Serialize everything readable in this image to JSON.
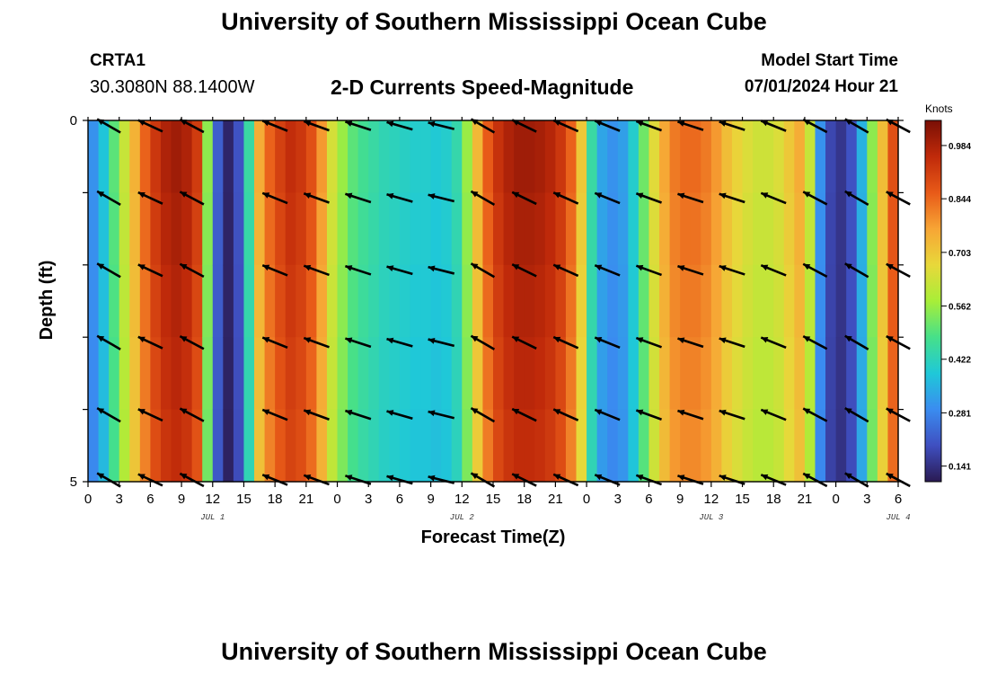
{
  "header": {
    "title": "University of Southern Mississippi Ocean Cube",
    "station": "CRTA1",
    "coords": "30.3080N  88.1400W",
    "subtitle": "2-D Currents Speed-Magnitude",
    "model_start_label": "Model Start Time",
    "model_start_time": "07/01/2024 Hour 21"
  },
  "footer": {
    "title": "University of Southern Mississippi Ocean Cube"
  },
  "chart_data": {
    "type": "heatmap",
    "title": "2-D Currents Speed-Magnitude",
    "xlabel": "Forecast Time(Z)",
    "ylabel": "Depth (ft)",
    "x_tick_labels": [
      "0",
      "3",
      "6",
      "9",
      "12",
      "15",
      "18",
      "21",
      "0",
      "3",
      "6",
      "9",
      "12",
      "15",
      "18",
      "21",
      "0",
      "3",
      "6",
      "9",
      "12",
      "15",
      "18",
      "21",
      "0",
      "3",
      "6"
    ],
    "x_range_hours": [
      0,
      78
    ],
    "date_labels": [
      {
        "hour": 12,
        "text": "JUL 1"
      },
      {
        "hour": 36,
        "text": "JUL 2"
      },
      {
        "hour": 60,
        "text": "JUL 3"
      },
      {
        "hour": 78,
        "text": "JUL 4"
      }
    ],
    "y_tick_labels": [
      "0",
      "5"
    ],
    "ylim": [
      0,
      5
    ],
    "depth_levels_ft": [
      0,
      1,
      2,
      3,
      4,
      5
    ],
    "colorbar": {
      "units": "Knots",
      "ticks": [
        "0.984",
        "0.844",
        "0.703",
        "0.562",
        "0.422",
        "0.281",
        "0.141"
      ],
      "min": 0.1,
      "max": 1.05,
      "colors": [
        "#2a1a52",
        "#3f4fc0",
        "#3a8cf0",
        "#1fc8d8",
        "#46e08a",
        "#a8ee38",
        "#e8d83a",
        "#f7a535",
        "#e85a18",
        "#c02a0a",
        "#7a0f05"
      ]
    },
    "speed_knots_by_hour": [
      [
        0,
        0.3
      ],
      [
        1,
        0.38
      ],
      [
        2,
        0.5
      ],
      [
        3,
        0.62
      ],
      [
        4,
        0.74
      ],
      [
        5,
        0.85
      ],
      [
        6,
        0.93
      ],
      [
        7,
        0.98
      ],
      [
        8,
        1.0
      ],
      [
        9,
        0.98
      ],
      [
        10,
        0.92
      ],
      [
        11,
        0.55
      ],
      [
        12,
        0.22
      ],
      [
        13,
        0.12
      ],
      [
        14,
        0.2
      ],
      [
        15,
        0.45
      ],
      [
        16,
        0.75
      ],
      [
        17,
        0.85
      ],
      [
        18,
        0.91
      ],
      [
        19,
        0.95
      ],
      [
        20,
        0.93
      ],
      [
        21,
        0.88
      ],
      [
        22,
        0.78
      ],
      [
        23,
        0.64
      ],
      [
        24,
        0.56
      ],
      [
        25,
        0.5
      ],
      [
        26,
        0.47
      ],
      [
        27,
        0.45
      ],
      [
        28,
        0.43
      ],
      [
        29,
        0.42
      ],
      [
        30,
        0.41
      ],
      [
        31,
        0.4
      ],
      [
        32,
        0.4
      ],
      [
        33,
        0.39
      ],
      [
        34,
        0.4
      ],
      [
        35,
        0.44
      ],
      [
        36,
        0.56
      ],
      [
        37,
        0.73
      ],
      [
        38,
        0.86
      ],
      [
        39,
        0.94
      ],
      [
        40,
        0.98
      ],
      [
        41,
        1.0
      ],
      [
        42,
        1.0
      ],
      [
        43,
        0.99
      ],
      [
        44,
        0.97
      ],
      [
        45,
        0.93
      ],
      [
        46,
        0.85
      ],
      [
        47,
        0.7
      ],
      [
        48,
        0.45
      ],
      [
        49,
        0.33
      ],
      [
        50,
        0.3
      ],
      [
        51,
        0.32
      ],
      [
        52,
        0.4
      ],
      [
        53,
        0.52
      ],
      [
        54,
        0.66
      ],
      [
        55,
        0.76
      ],
      [
        56,
        0.82
      ],
      [
        57,
        0.84
      ],
      [
        58,
        0.84
      ],
      [
        59,
        0.82
      ],
      [
        60,
        0.78
      ],
      [
        61,
        0.72
      ],
      [
        62,
        0.68
      ],
      [
        63,
        0.65
      ],
      [
        64,
        0.63
      ],
      [
        65,
        0.63
      ],
      [
        66,
        0.65
      ],
      [
        67,
        0.7
      ],
      [
        68,
        0.75
      ],
      [
        69,
        0.62
      ],
      [
        70,
        0.3
      ],
      [
        71,
        0.18
      ],
      [
        72,
        0.15
      ],
      [
        73,
        0.2
      ],
      [
        74,
        0.35
      ],
      [
        75,
        0.55
      ],
      [
        76,
        0.72
      ],
      [
        77,
        0.88
      ],
      [
        78,
        0.95
      ]
    ],
    "current_direction_deg_by_hour": [
      [
        2,
        120
      ],
      [
        6,
        115
      ],
      [
        10,
        118
      ],
      [
        18,
        112
      ],
      [
        22,
        110
      ],
      [
        26,
        108
      ],
      [
        30,
        106
      ],
      [
        34,
        104
      ],
      [
        38,
        120
      ],
      [
        42,
        116
      ],
      [
        46,
        114
      ],
      [
        50,
        112
      ],
      [
        54,
        110
      ],
      [
        58,
        108
      ],
      [
        62,
        108
      ],
      [
        66,
        112
      ],
      [
        70,
        118
      ],
      [
        74,
        120
      ],
      [
        78,
        118
      ]
    ]
  }
}
